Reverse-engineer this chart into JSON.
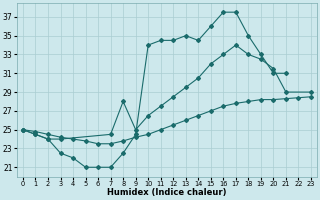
{
  "xlabel": "Humidex (Indice chaleur)",
  "bg_color": "#cde8ec",
  "grid_color": "#aacdd2",
  "line_color": "#1a6b6b",
  "xlim": [
    -0.5,
    23.5
  ],
  "ylim": [
    20.0,
    38.5
  ],
  "yticks": [
    21,
    23,
    25,
    27,
    29,
    31,
    33,
    35,
    37
  ],
  "xticks": [
    0,
    1,
    2,
    3,
    4,
    5,
    6,
    7,
    8,
    9,
    10,
    11,
    12,
    13,
    14,
    15,
    16,
    17,
    18,
    19,
    20,
    21,
    22,
    23
  ],
  "s1_x": [
    0,
    1,
    2,
    3,
    4,
    5,
    6,
    7,
    8,
    9,
    10,
    11,
    12,
    13,
    14,
    15,
    16,
    17,
    18,
    19,
    20,
    21
  ],
  "s1_y": [
    25.0,
    24.5,
    24.0,
    22.5,
    22.0,
    21.0,
    21.0,
    21.0,
    22.5,
    24.5,
    34.0,
    34.5,
    34.5,
    35.0,
    34.5,
    36.0,
    37.5,
    37.5,
    35.0,
    33.0,
    31.0,
    31.0
  ],
  "s2_x": [
    0,
    1,
    2,
    3,
    7,
    8,
    9,
    10,
    11,
    12,
    13,
    14,
    15,
    16,
    17,
    18,
    19,
    20,
    21,
    23
  ],
  "s2_y": [
    25.0,
    24.5,
    24.0,
    24.0,
    24.5,
    28.0,
    25.0,
    26.5,
    27.5,
    28.5,
    29.5,
    30.5,
    32.0,
    33.0,
    34.0,
    33.0,
    32.5,
    31.5,
    29.0,
    29.0
  ],
  "s3_x": [
    0,
    1,
    2,
    3,
    4,
    5,
    6,
    7,
    8,
    9,
    10,
    11,
    12,
    13,
    14,
    15,
    16,
    17,
    18,
    19,
    20,
    21,
    22,
    23
  ],
  "s3_y": [
    25.0,
    24.8,
    24.5,
    24.2,
    24.0,
    23.8,
    23.5,
    23.5,
    23.8,
    24.2,
    24.5,
    25.0,
    25.5,
    26.0,
    26.5,
    27.0,
    27.5,
    27.8,
    28.0,
    28.2,
    28.2,
    28.3,
    28.4,
    28.5
  ]
}
